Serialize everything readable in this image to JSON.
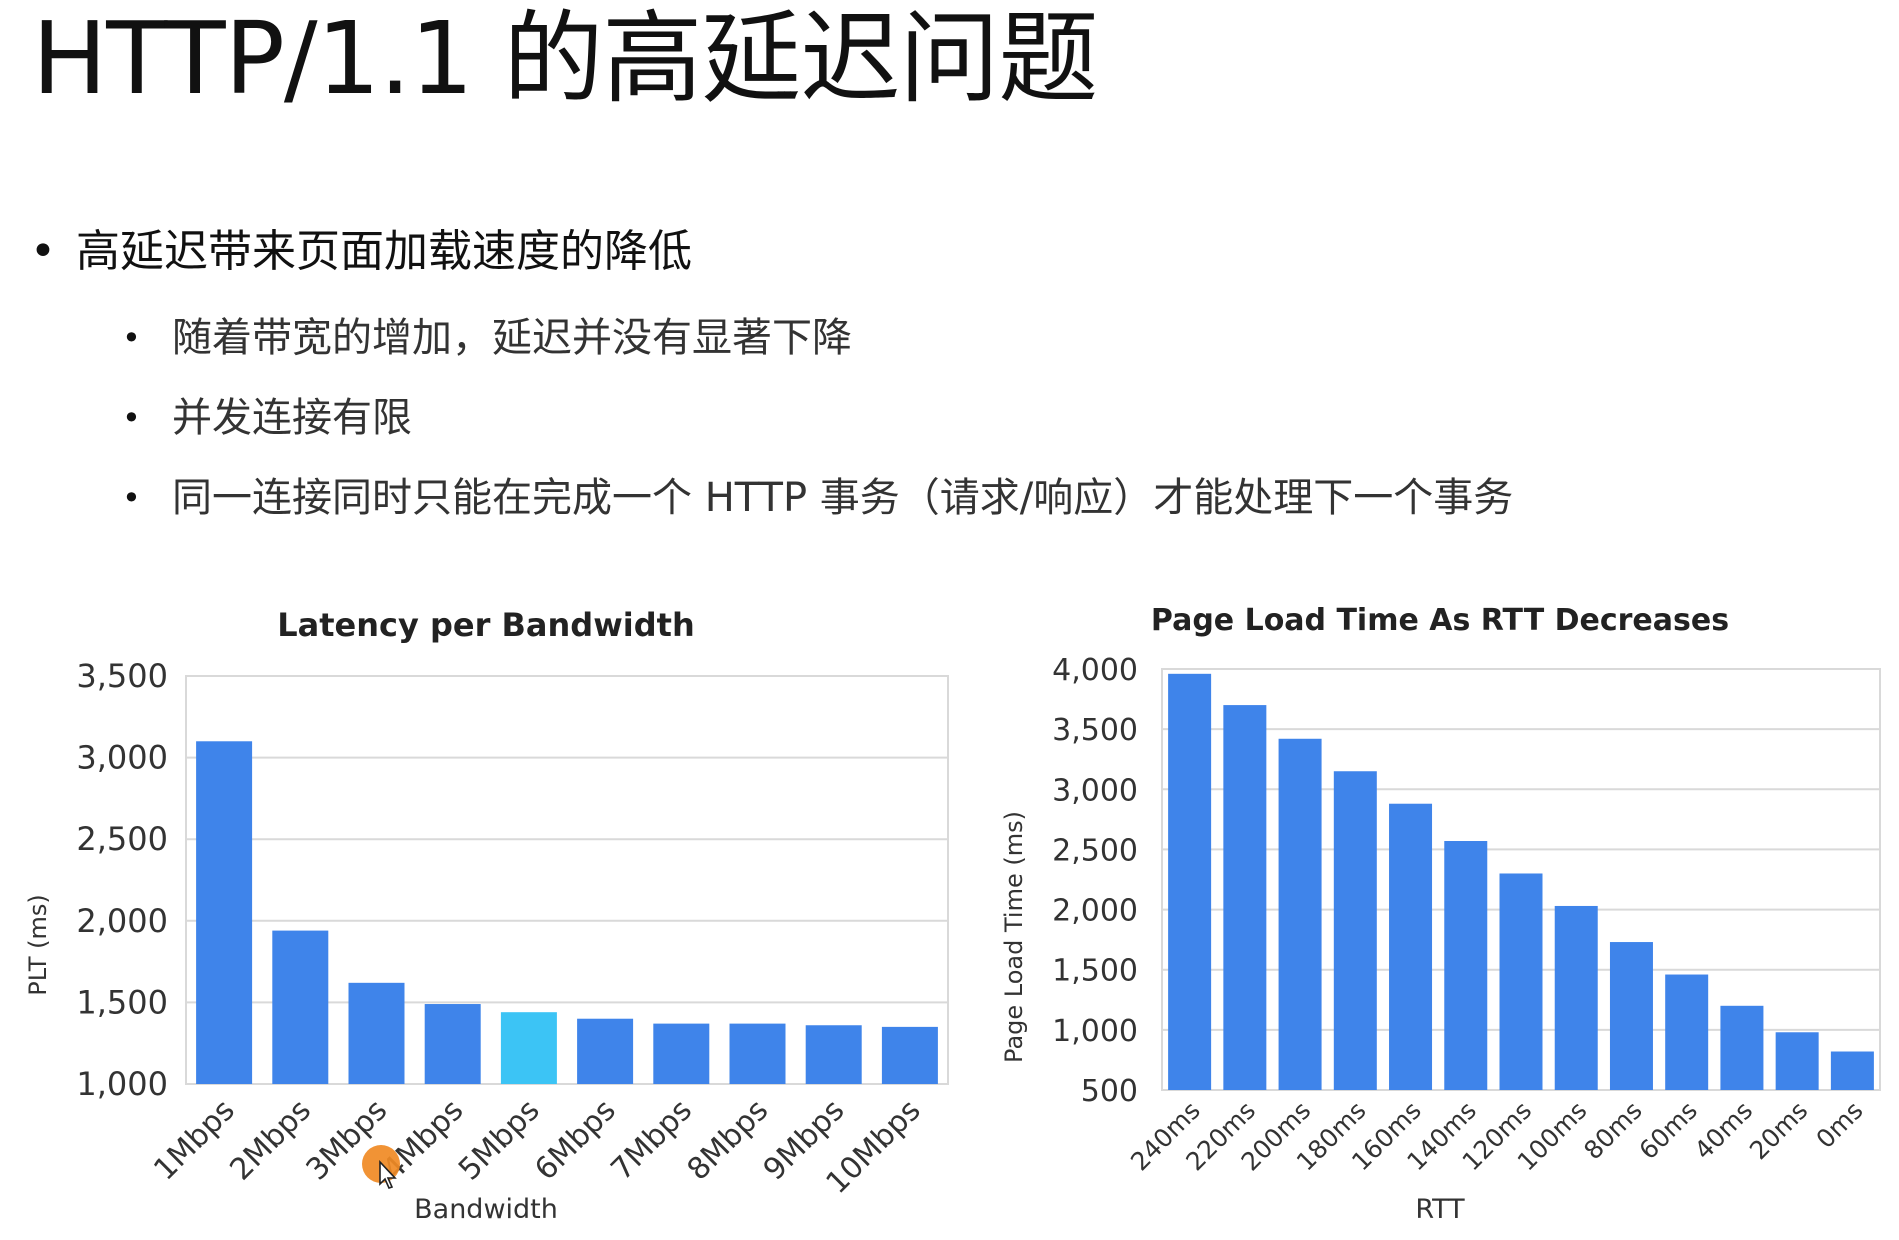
{
  "slide": {
    "title": "HTTP/1.1 的高延迟问题",
    "bullets": [
      {
        "level": 1,
        "text": "高延迟带来页面加载速度的降低"
      },
      {
        "level": 2,
        "text": "随着带宽的增加，延迟并没有显著下降"
      },
      {
        "level": 2,
        "text": "并发连接有限"
      },
      {
        "level": 2,
        "text": "同一连接同时只能在完成一个 HTTP 事务（请求/响应）才能处理下一个事务"
      }
    ]
  },
  "colors": {
    "bar": "#3f84ea",
    "highlight_bar": "#3cc4f5",
    "grid": "#d9d9d9",
    "axis_text": "#333333",
    "cursor": "#f08a24"
  },
  "chart_data": [
    {
      "type": "bar",
      "title": "Latency per Bandwidth",
      "xlabel": "Bandwidth",
      "ylabel": "PLT (ms)",
      "categories": [
        "1Mbps",
        "2Mbps",
        "3Mbps",
        "4Mbps",
        "5Mbps",
        "6Mbps",
        "7Mbps",
        "8Mbps",
        "9Mbps",
        "10Mbps"
      ],
      "values": [
        3100,
        1940,
        1620,
        1490,
        1440,
        1400,
        1370,
        1370,
        1360,
        1350
      ],
      "ylim": [
        1000,
        3500
      ],
      "yticks": [
        1000,
        1500,
        2000,
        2500,
        3000,
        3500
      ],
      "ytick_labels": [
        "1,000",
        "1,500",
        "2,000",
        "2,500",
        "3,000",
        "3,500"
      ],
      "highlight_index": 4,
      "grid": true
    },
    {
      "type": "bar",
      "title": "Page Load Time As RTT Decreases",
      "xlabel": "RTT",
      "ylabel": "Page Load Time (ms)",
      "categories": [
        "240ms",
        "220ms",
        "200ms",
        "180ms",
        "160ms",
        "140ms",
        "120ms",
        "100ms",
        "80ms",
        "60ms",
        "40ms",
        "20ms",
        "0ms"
      ],
      "values": [
        3960,
        3700,
        3420,
        3150,
        2880,
        2570,
        2300,
        2030,
        1730,
        1460,
        1200,
        980,
        820
      ],
      "ylim": [
        500,
        4000
      ],
      "yticks": [
        500,
        1000,
        1500,
        2000,
        2500,
        3000,
        3500,
        4000
      ],
      "ytick_labels": [
        "500",
        "1,000",
        "1,500",
        "2,000",
        "2,500",
        "3,000",
        "3,500",
        "4,000"
      ],
      "grid": true
    }
  ]
}
